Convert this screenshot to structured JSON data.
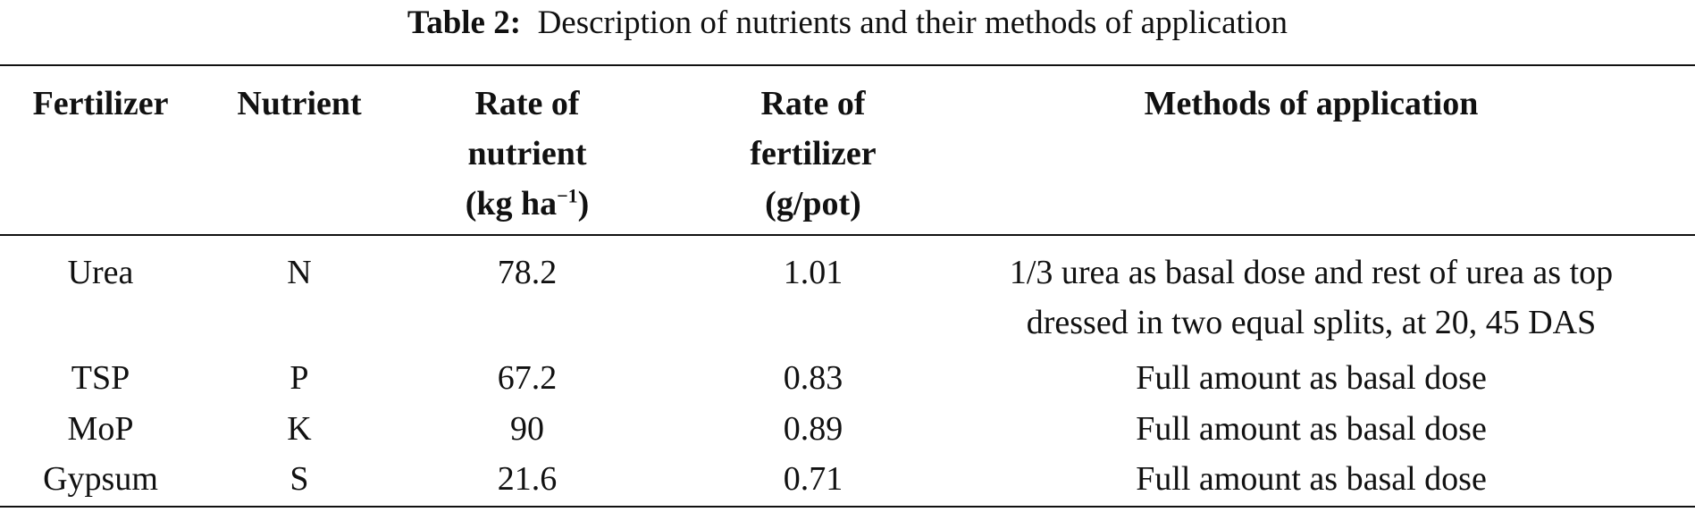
{
  "caption": {
    "label": "Table 2:",
    "text": "Description of nutrients and their methods of application"
  },
  "headers": {
    "fertilizer": "Fertilizer",
    "nutrient": "Nutrient",
    "rate_nutrient_line1": "Rate of",
    "rate_nutrient_line2": "nutrient",
    "rate_nutrient_unit": "(kg  ha",
    "rate_nutrient_unit_sup": "−1",
    "rate_nutrient_unit_close": ")",
    "rate_fertilizer_line1": "Rate of",
    "rate_fertilizer_line2": "fertilizer",
    "rate_fertilizer_unit": "(g/pot)",
    "methods": "Methods of application"
  },
  "rows": [
    {
      "fertilizer": "Urea",
      "nutrient": "N",
      "rate_nutrient": "78.2",
      "rate_fertilizer": "1.01",
      "method_line1": "1/3 urea as basal dose and rest of urea as top",
      "method_line2": "dressed in two equal splits, at 20, 45 DAS"
    },
    {
      "fertilizer": "TSP",
      "nutrient": "P",
      "rate_nutrient": "67.2",
      "rate_fertilizer": "0.83",
      "method_line1": "Full amount as basal dose"
    },
    {
      "fertilizer": "MoP",
      "nutrient": "K",
      "rate_nutrient": "90",
      "rate_fertilizer": "0.89",
      "method_line1": "Full amount as basal dose"
    },
    {
      "fertilizer": "Gypsum",
      "nutrient": "S",
      "rate_nutrient": "21.6",
      "rate_fertilizer": "0.71",
      "method_line1": "Full amount as basal dose"
    }
  ]
}
